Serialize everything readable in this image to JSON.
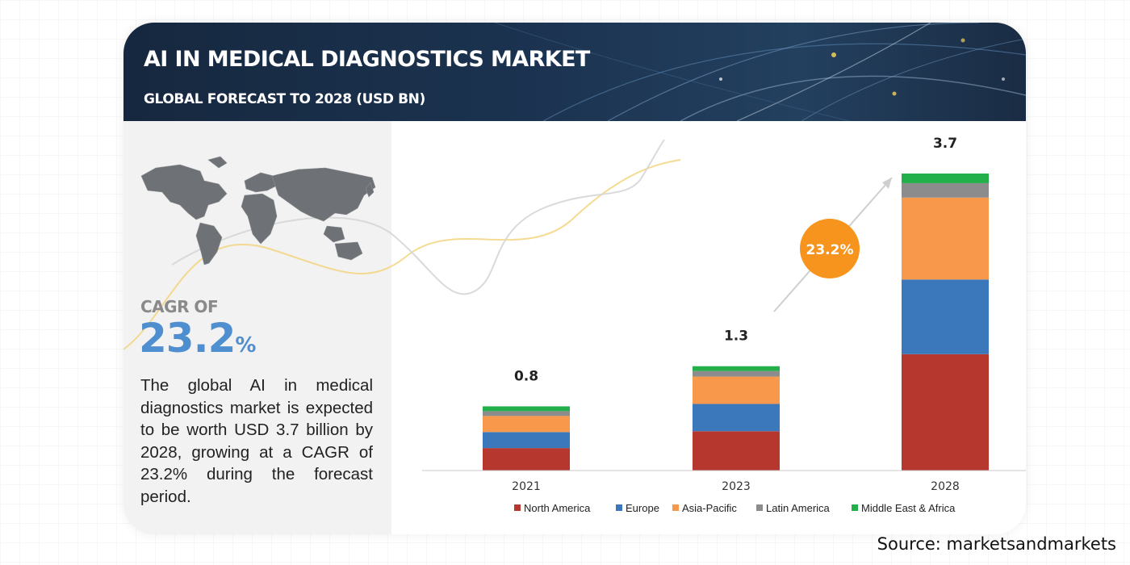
{
  "header": {
    "title": "AI IN MEDICAL DIAGNOSTICS MARKET",
    "subtitle": "GLOBAL FORECAST TO 2028 (USD BN)"
  },
  "left_panel": {
    "map_icon": "world-map-icon",
    "cagr_label": "CAGR OF",
    "cagr_number": "23.2",
    "cagr_percent": "%",
    "description": "The global AI in medical diagnostics market is expected to be worth USD 3.7 billion by 2028, growing at a CAGR of 23.2% during the forecast period."
  },
  "growth_badge": {
    "label": "23.2%",
    "color": "#f7941d"
  },
  "source": "Source: marketsandmarkets",
  "colors": {
    "header_bg": "#1b3350",
    "cagr_blue": "#4f8fcf",
    "panel_gray": "#f2f2f2"
  },
  "chart_data": {
    "type": "bar",
    "stacked": true,
    "categories": [
      "2021",
      "2023",
      "2028"
    ],
    "totals": [
      0.8,
      1.3,
      3.7
    ],
    "total_labels": [
      "0.8",
      "1.3",
      "3.7"
    ],
    "ylim": [
      0,
      3.7
    ],
    "grid": false,
    "legend_position": "bottom",
    "series": [
      {
        "name": "North America",
        "color": "#b5372e",
        "values": [
          0.28,
          0.49,
          1.45
        ]
      },
      {
        "name": "Europe",
        "color": "#3b78bb",
        "values": [
          0.2,
          0.34,
          0.93
        ]
      },
      {
        "name": "Asia-Pacific",
        "color": "#f7984a",
        "values": [
          0.2,
          0.34,
          1.02
        ]
      },
      {
        "name": "Latin America",
        "color": "#8c8c8c",
        "values": [
          0.06,
          0.07,
          0.18
        ]
      },
      {
        "name": "Middle East & Africa",
        "color": "#23b04b",
        "values": [
          0.06,
          0.06,
          0.12
        ]
      }
    ]
  }
}
